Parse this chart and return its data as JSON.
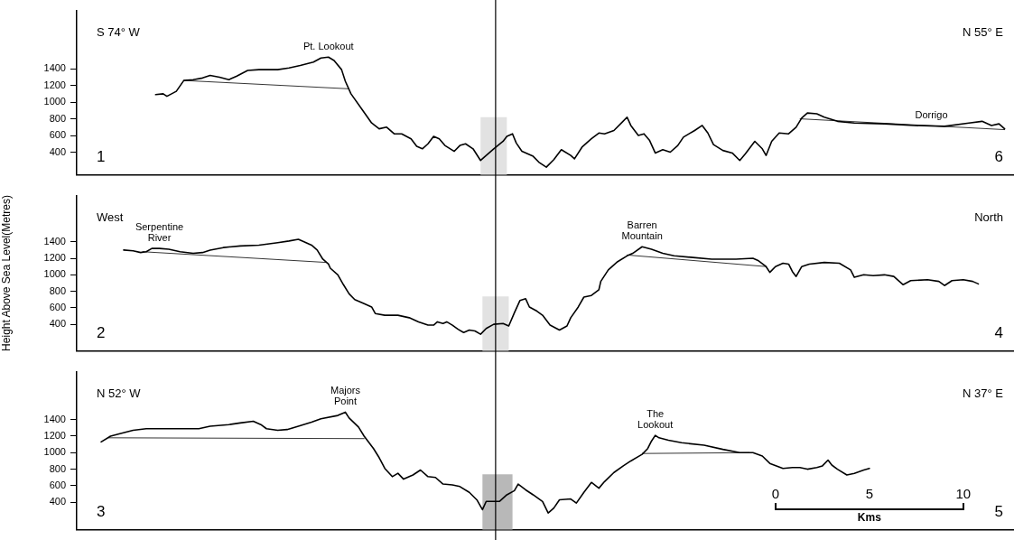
{
  "chart_data": [
    {
      "type": "line",
      "tick_labels": "y",
      "xlim": [
        -37.2,
        12.7
      ],
      "ylim": [
        130,
        2100
      ],
      "yticks": [
        400,
        600,
        800,
        1000,
        1200,
        1400
      ],
      "marker": "none",
      "annotations": [
        "S 74° W",
        "N 55° E",
        "1",
        "6",
        {
          "text": "Pt. Lookout",
          "x": -23.8,
          "y": 1540
        },
        {
          "text": "Dorrigo",
          "x": 8.3,
          "y": 720
        }
      ],
      "ref_lines": [
        {
          "axis": "x",
          "value": -14.9
        }
      ],
      "bands": [
        {
          "axis": "x",
          "from": -15.7,
          "to": -14.3,
          "color": "#e2e2e2"
        }
      ],
      "series": [
        {
          "color": "#000000",
          "x": [
            -33.0,
            -32.6,
            -32.4,
            -31.9,
            -31.5,
            -31.0,
            -30.5,
            -30.1,
            -29.6,
            -29.1,
            -28.7,
            -28.1,
            -27.5,
            -26.5,
            -25.9,
            -25.3,
            -24.6,
            -24.2,
            -23.8,
            -23.5,
            -23.1,
            -22.9,
            -22.6,
            -22.0,
            -21.5,
            -21.1,
            -20.7,
            -20.3,
            -19.9,
            -19.4,
            -19.1,
            -18.8,
            -18.5,
            -18.2,
            -17.9,
            -17.6,
            -17.1,
            -16.8,
            -16.5,
            -16.1,
            -15.7,
            -15.4,
            -15.0,
            -14.5,
            -14.3,
            -14.0,
            -13.8,
            -13.5,
            -12.9,
            -12.6,
            -12.2,
            -11.8,
            -11.4,
            -10.9,
            -10.7,
            -10.3,
            -9.8,
            -9.4,
            -9.1,
            -8.6,
            -8.2,
            -7.9,
            -7.7,
            -7.3,
            -7.0,
            -6.7,
            -6.4,
            -6.0,
            -5.6,
            -5.2,
            -4.9,
            -4.6,
            -4.3,
            -3.9,
            -3.6,
            -3.3,
            -2.8,
            -2.3,
            -1.9,
            -1.6,
            -1.1,
            -0.7,
            -0.5,
            -0.2,
            0.2,
            0.7,
            1.1,
            1.4,
            1.7,
            2.2,
            2.6,
            3.3,
            4.2,
            5.8,
            7.4,
            9.0,
            10.3,
            11.0,
            11.5,
            11.9,
            12.2
          ],
          "values": [
            1090,
            1100,
            1070,
            1130,
            1260,
            1270,
            1290,
            1320,
            1300,
            1270,
            1310,
            1380,
            1390,
            1390,
            1410,
            1440,
            1480,
            1530,
            1540,
            1500,
            1390,
            1250,
            1100,
            910,
            750,
            680,
            700,
            620,
            620,
            560,
            470,
            440,
            500,
            590,
            560,
            480,
            410,
            480,
            500,
            440,
            300,
            360,
            440,
            530,
            590,
            620,
            510,
            410,
            350,
            280,
            220,
            310,
            430,
            360,
            320,
            460,
            560,
            630,
            620,
            660,
            750,
            820,
            720,
            600,
            620,
            540,
            390,
            430,
            400,
            480,
            580,
            620,
            660,
            720,
            630,
            490,
            420,
            390,
            300,
            380,
            530,
            440,
            360,
            530,
            630,
            620,
            700,
            810,
            870,
            860,
            820,
            770,
            750,
            740,
            720,
            710,
            750,
            770,
            720,
            740,
            680
          ]
        },
        {
          "type": "line",
          "color": "#000000",
          "x": [
            -31.5,
            -22.7
          ],
          "values": [
            1260,
            1160
          ]
        },
        {
          "type": "line",
          "color": "#000000",
          "x": [
            1.3,
            12.2
          ],
          "values": [
            800,
            670
          ]
        }
      ]
    },
    {
      "type": "line",
      "tick_labels": "y",
      "xlim": [
        -37.2,
        12.7
      ],
      "ylim": [
        80,
        1960
      ],
      "yticks": [
        400,
        600,
        800,
        1000,
        1200,
        1400
      ],
      "marker": "none",
      "ylabel": "Height Above Sea Level(Metres)",
      "annotations": [
        "West",
        "North",
        "2",
        "4",
        {
          "text": "Serpentine\nRiver",
          "x": -32.8,
          "y": 1320
        },
        {
          "text": "Barren\nMountain",
          "x": -7.1,
          "y": 1340
        }
      ],
      "ref_lines": [
        {
          "axis": "x",
          "value": -14.9
        }
      ],
      "bands": [
        {
          "axis": "x",
          "from": -15.6,
          "to": -14.2,
          "color": "#e2e2e2"
        }
      ],
      "series": [
        {
          "color": "#000000",
          "x": [
            -34.7,
            -34.2,
            -33.8,
            -33.5,
            -33.2,
            -32.8,
            -32.3,
            -31.7,
            -31.0,
            -30.5,
            -30.1,
            -29.4,
            -28.5,
            -27.5,
            -26.5,
            -25.9,
            -25.4,
            -25.1,
            -24.7,
            -24.4,
            -24.1,
            -23.8,
            -23.7,
            -23.3,
            -23.0,
            -22.7,
            -22.4,
            -21.9,
            -21.5,
            -21.3,
            -20.8,
            -20.1,
            -19.5,
            -19.0,
            -18.5,
            -18.2,
            -18.0,
            -17.7,
            -17.5,
            -17.2,
            -16.9,
            -16.6,
            -16.3,
            -16.0,
            -15.7,
            -15.4,
            -15.0,
            -14.5,
            -14.2,
            -13.9,
            -13.6,
            -13.3,
            -13.1,
            -12.7,
            -12.4,
            -12.0,
            -11.5,
            -11.1,
            -10.9,
            -10.5,
            -10.2,
            -9.8,
            -9.4,
            -9.3,
            -8.9,
            -8.4,
            -7.9,
            -7.6,
            -7.1,
            -6.6,
            -6.0,
            -5.4,
            -4.4,
            -3.4,
            -2.1,
            -1.2,
            -0.9,
            -0.5,
            -0.3,
            0.0,
            0.4,
            0.7,
            0.9,
            1.1,
            1.4,
            1.8,
            2.6,
            3.4,
            4.0,
            4.2,
            4.7,
            5.2,
            5.8,
            6.3,
            6.8,
            7.2,
            8.1,
            8.7,
            9.0,
            9.4,
            10.0,
            10.5,
            10.8
          ],
          "values": [
            1300,
            1290,
            1270,
            1280,
            1320,
            1320,
            1310,
            1280,
            1260,
            1270,
            1300,
            1330,
            1350,
            1360,
            1390,
            1410,
            1430,
            1400,
            1360,
            1300,
            1190,
            1130,
            1080,
            1000,
            880,
            770,
            700,
            650,
            610,
            530,
            510,
            510,
            480,
            430,
            390,
            390,
            430,
            410,
            430,
            390,
            340,
            300,
            330,
            320,
            280,
            350,
            400,
            410,
            380,
            540,
            690,
            710,
            610,
            560,
            510,
            390,
            330,
            380,
            480,
            610,
            730,
            750,
            820,
            920,
            1060,
            1160,
            1230,
            1260,
            1340,
            1310,
            1260,
            1230,
            1210,
            1190,
            1190,
            1200,
            1170,
            1100,
            1030,
            1100,
            1140,
            1130,
            1040,
            980,
            1100,
            1130,
            1150,
            1140,
            1060,
            970,
            1000,
            990,
            1000,
            980,
            880,
            930,
            940,
            920,
            870,
            930,
            940,
            920,
            890
          ]
        },
        {
          "type": "line",
          "color": "#000000",
          "x": [
            -33.7,
            -23.9
          ],
          "values": [
            1280,
            1150
          ]
        },
        {
          "type": "line",
          "color": "#000000",
          "x": [
            -7.9,
            -0.5
          ],
          "values": [
            1240,
            1100
          ]
        }
      ]
    },
    {
      "type": "line",
      "xlim": [
        -37.2,
        12.7
      ],
      "xticks": [
        0,
        5,
        10
      ],
      "xlabel": "Kms",
      "ylim": [
        70,
        1980
      ],
      "yticks": [
        400,
        600,
        800,
        1000,
        1200,
        1400
      ],
      "marker": "none",
      "annotations": [
        "N 52° W",
        "N 37° E",
        "3",
        "5",
        {
          "text": "Majors\nPoint",
          "x": -22.9,
          "y": 1490
        },
        {
          "text": "The\nLookout",
          "x": -6.4,
          "y": 1210
        }
      ],
      "ref_lines": [
        {
          "axis": "x",
          "value": -14.9
        }
      ],
      "bands": [
        {
          "axis": "x",
          "from": -15.6,
          "to": -14.0,
          "color": "#b8b8b8"
        }
      ],
      "series": [
        {
          "color": "#000000",
          "x": [
            -35.9,
            -35.4,
            -34.9,
            -34.2,
            -33.5,
            -32.6,
            -31.7,
            -30.7,
            -30.1,
            -29.1,
            -28.5,
            -27.8,
            -27.4,
            -27.1,
            -26.5,
            -26.0,
            -25.4,
            -24.7,
            -24.2,
            -23.3,
            -22.9,
            -22.7,
            -22.2,
            -21.9,
            -21.4,
            -21.1,
            -20.8,
            -20.4,
            -20.1,
            -19.8,
            -19.3,
            -18.9,
            -18.5,
            -18.1,
            -17.7,
            -17.2,
            -16.8,
            -16.3,
            -15.9,
            -15.6,
            -15.4,
            -15.0,
            -14.7,
            -14.3,
            -13.9,
            -13.7,
            -13.3,
            -12.9,
            -12.4,
            -12.1,
            -11.8,
            -11.5,
            -10.9,
            -10.6,
            -10.2,
            -9.8,
            -9.4,
            -9.1,
            -8.6,
            -8.1,
            -7.7,
            -7.1,
            -6.8,
            -6.6,
            -6.4,
            -6.2,
            -5.7,
            -5.0,
            -3.8,
            -2.8,
            -1.9,
            -1.2,
            -0.7,
            -0.3,
            0.4,
            0.9,
            1.3,
            1.7,
            2.2,
            2.5,
            2.8,
            3.0,
            3.3,
            3.8,
            4.2,
            4.7,
            5.0
          ],
          "values": [
            1130,
            1200,
            1230,
            1270,
            1290,
            1290,
            1290,
            1290,
            1320,
            1340,
            1360,
            1380,
            1340,
            1290,
            1270,
            1280,
            1320,
            1370,
            1410,
            1450,
            1490,
            1420,
            1310,
            1200,
            1050,
            940,
            810,
            710,
            750,
            680,
            730,
            790,
            710,
            700,
            620,
            610,
            590,
            520,
            430,
            310,
            410,
            410,
            410,
            490,
            540,
            620,
            550,
            490,
            410,
            270,
            330,
            430,
            440,
            390,
            520,
            640,
            570,
            650,
            760,
            840,
            900,
            980,
            1050,
            1140,
            1210,
            1180,
            1150,
            1120,
            1090,
            1040,
            1000,
            1000,
            960,
            870,
            810,
            820,
            820,
            800,
            820,
            840,
            910,
            850,
            800,
            730,
            750,
            790,
            810
          ]
        },
        {
          "type": "line",
          "color": "#000000",
          "x": [
            -35.5,
            -21.9
          ],
          "values": [
            1180,
            1170
          ]
        },
        {
          "type": "line",
          "color": "#000000",
          "x": [
            -7.1,
            -1.4
          ],
          "values": [
            990,
            1000
          ]
        }
      ]
    }
  ]
}
